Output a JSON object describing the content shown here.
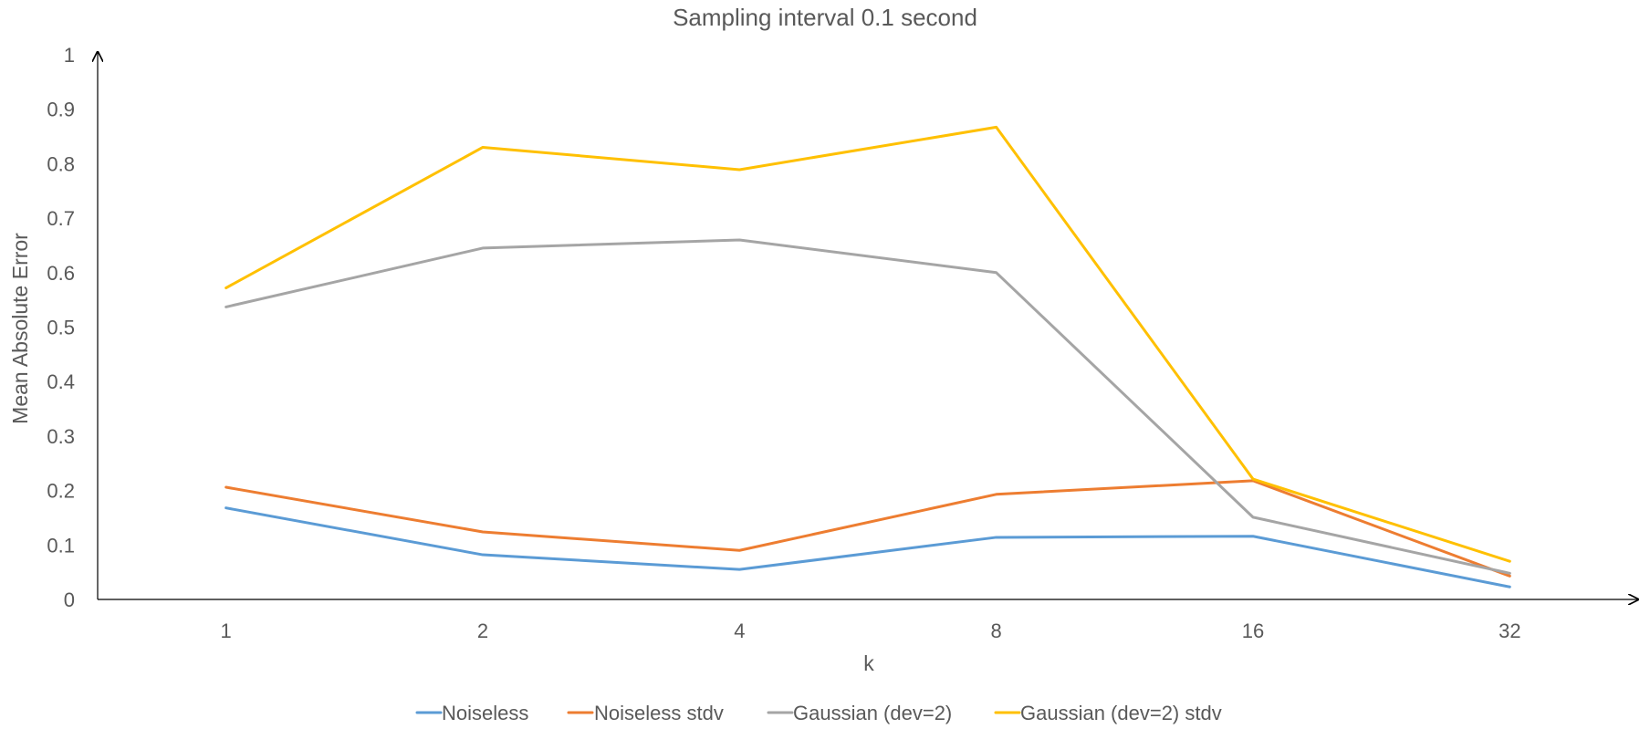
{
  "chart_data": {
    "type": "line",
    "title": "Sampling interval 0.1 second",
    "xlabel": "k",
    "ylabel": "Mean Absolute Error",
    "categories": [
      "1",
      "2",
      "4",
      "8",
      "16",
      "32"
    ],
    "y_ticks": [
      "0",
      "0.1",
      "0.2",
      "0.3",
      "0.4",
      "0.5",
      "0.6",
      "0.7",
      "0.8",
      "0.9",
      "1"
    ],
    "ylim": [
      0,
      1
    ],
    "grid": false,
    "legend_position": "bottom",
    "series": [
      {
        "name": "Noiseless",
        "color": "#5B9BD5",
        "values": [
          0.168,
          0.082,
          0.055,
          0.114,
          0.116,
          0.023
        ]
      },
      {
        "name": "Noiseless stdv",
        "color": "#ED7D31",
        "values": [
          0.206,
          0.124,
          0.09,
          0.193,
          0.218,
          0.043
        ]
      },
      {
        "name": "Gaussian (dev=2)",
        "color": "#A5A5A5",
        "values": [
          0.537,
          0.645,
          0.66,
          0.6,
          0.151,
          0.048
        ]
      },
      {
        "name": "Gaussian (dev=2) stdv",
        "color": "#FFC000",
        "values": [
          0.572,
          0.83,
          0.789,
          0.867,
          0.221,
          0.07
        ]
      }
    ]
  }
}
